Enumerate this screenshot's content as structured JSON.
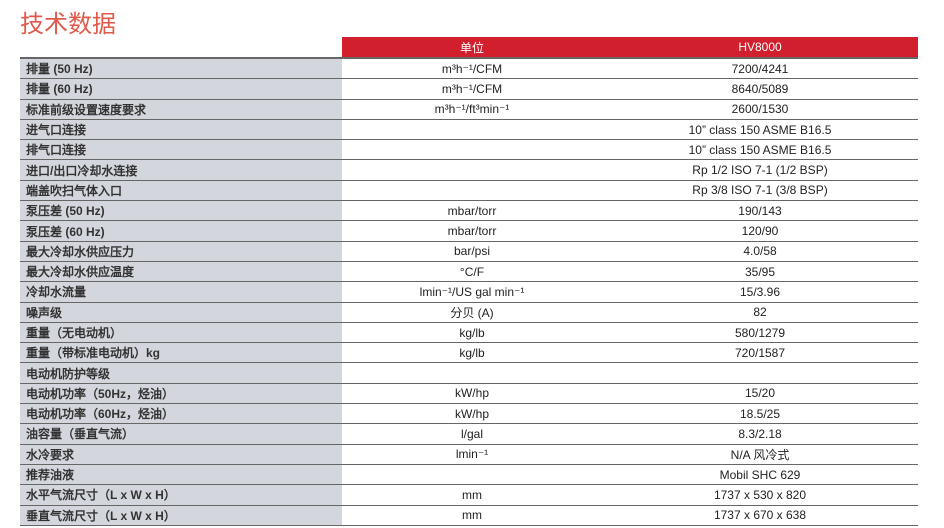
{
  "title": "技术数据",
  "header": {
    "unit": "单位",
    "model": "HV8000"
  },
  "rows": [
    {
      "label": "排量 (50 Hz)",
      "unit": "m³h⁻¹/CFM",
      "value": "7200/4241"
    },
    {
      "label": "排量 (60 Hz)",
      "unit": "m³h⁻¹/CFM",
      "value": "8640/5089"
    },
    {
      "label": "标准前级设置速度要求",
      "unit": "m³h⁻¹/ft³min⁻¹",
      "value": "2600/1530"
    },
    {
      "label": "进气口连接",
      "unit": "",
      "value": "10” class 150 ASME B16.5"
    },
    {
      "label": "排气口连接",
      "unit": "",
      "value": "10” class 150 ASME B16.5"
    },
    {
      "label": "进口/出口冷却水连接",
      "unit": "",
      "value": "Rp 1/2 ISO 7-1 (1/2 BSP)"
    },
    {
      "label": "端盖吹扫气体入口",
      "unit": "",
      "value": "Rp 3/8 ISO 7-1 (3/8 BSP)"
    },
    {
      "label": "泵压差 (50 Hz)",
      "unit": "mbar/torr",
      "value": "190/143"
    },
    {
      "label": "泵压差 (60 Hz)",
      "unit": "mbar/torr",
      "value": "120/90"
    },
    {
      "label": "最大冷却水供应压力",
      "unit": "bar/psi",
      "value": "4.0/58"
    },
    {
      "label": "最大冷却水供应温度",
      "unit": "°C/F",
      "value": "35/95"
    },
    {
      "label": "冷却水流量",
      "unit": "lmin⁻¹/US gal min⁻¹",
      "value": "15/3.96"
    },
    {
      "label": "噪声级",
      "unit": "分贝 (A)",
      "value": "82"
    },
    {
      "label": "重量（无电动机）",
      "unit": "kg/lb",
      "value": "580/1279"
    },
    {
      "label": "重量（带标准电动机）kg",
      "unit": "kg/lb",
      "value": "720/1587"
    },
    {
      "label": "电动机防护等级",
      "unit": "",
      "value": ""
    },
    {
      "label": "电动机功率（50Hz，烃油）",
      "unit": "kW/hp",
      "value": "15/20"
    },
    {
      "label": "电动机功率（60Hz，烃油）",
      "unit": "kW/hp",
      "value": "18.5/25"
    },
    {
      "label": "油容量（垂直气流）",
      "unit": "l/gal",
      "value": "8.3/2.18"
    },
    {
      "label": "水冷要求",
      "unit": "lmin⁻¹",
      "value": "N/A 风冷式"
    },
    {
      "label": "推荐油液",
      "unit": "",
      "value": "Mobil SHC 629"
    },
    {
      "label": "水平气流尺寸（L x W x H）",
      "unit": "mm",
      "value": "1737 x 530 x 820"
    },
    {
      "label": "垂直气流尺寸（L x W x H）",
      "unit": "mm",
      "value": "1737 x 670 x 638"
    }
  ]
}
